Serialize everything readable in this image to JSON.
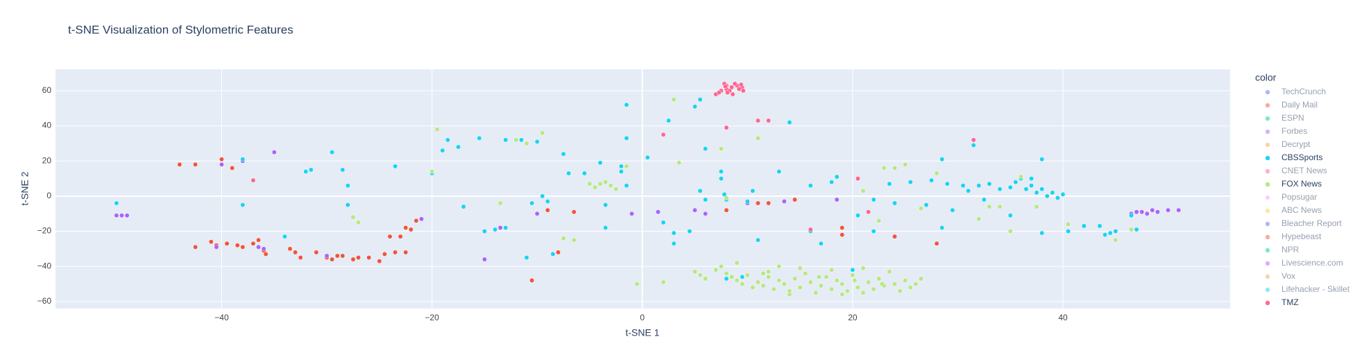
{
  "chart_data": {
    "type": "scatter",
    "title": "t-SNE Visualization of Stylometric Features",
    "x_label": "t-SNE 1",
    "y_label": "t-SNE 2",
    "legend_title": "color",
    "xlim": [
      -55.8,
      55.9
    ],
    "ylim": [
      -64,
      72.2
    ],
    "xticks": [
      {
        "value": -40,
        "label": "−40"
      },
      {
        "value": -20,
        "label": "−20"
      },
      0,
      20,
      40
    ],
    "yticks": [
      {
        "value": -60,
        "label": "−60"
      },
      {
        "value": -40,
        "label": "−40"
      },
      {
        "value": -20,
        "label": "−20"
      },
      0,
      20,
      40,
      60
    ],
    "grid": true,
    "series": [
      {
        "name": "TechCrunch",
        "color": "#636efa",
        "legend_dimmed": true,
        "x": [],
        "y": []
      },
      {
        "name": "Daily Mail",
        "color": "#EF553B",
        "legend_dimmed": true,
        "x": [
          -44,
          -42.5,
          -40,
          -39,
          -42.5,
          -41,
          -40.5,
          -39.5,
          -38.5,
          -38,
          -37,
          -36.5,
          -36,
          -35.8,
          -33.5,
          -33,
          -32.5,
          -31,
          -30,
          -29.5,
          -29,
          -28.5,
          -27.5,
          -27,
          -26,
          -25,
          -24.5,
          -24,
          -23.5,
          -23,
          -22.5,
          -22,
          -21.5,
          -22.5,
          -9,
          -8,
          -10.5,
          -6.5,
          8,
          11,
          12,
          14.5,
          19,
          19,
          24,
          28
        ],
        "y": [
          18,
          18,
          21,
          16,
          -29,
          -26,
          -28,
          -27,
          -28,
          -29,
          -27,
          -25,
          -31,
          -33,
          -30,
          -32,
          -35,
          -32,
          -35,
          -36,
          -34,
          -34,
          -36,
          -35,
          -35,
          -37,
          -33,
          -23,
          -32,
          -23,
          -18,
          -19,
          -14,
          -32,
          -8,
          -32,
          -48,
          -9,
          -8,
          -4,
          -4,
          -2,
          -18,
          -22,
          -23,
          -27
        ]
      },
      {
        "name": "ESPN",
        "color": "#00cc96",
        "legend_dimmed": true,
        "x": [],
        "y": []
      },
      {
        "name": "Forbes",
        "color": "#ab63fa",
        "legend_dimmed": true,
        "x": [
          -50,
          -49.5,
          -49,
          -40.5,
          -40,
          -38,
          -36,
          -36.5,
          -35,
          -30,
          -21,
          -15,
          -13.5,
          -10,
          -1,
          1.5,
          5,
          6,
          10,
          13.5,
          18.5,
          46.5,
          47,
          47.5,
          48,
          48.5,
          49,
          50,
          51
        ],
        "y": [
          -11,
          -11,
          -11,
          -29,
          18,
          20,
          -30,
          -29,
          25,
          -34,
          -13,
          -36,
          -18,
          -10,
          -10,
          -9,
          -8,
          -10,
          -4,
          -3,
          -2,
          -10,
          -9,
          -9,
          -10,
          -8,
          -9,
          -8,
          -8
        ]
      },
      {
        "name": "Decrypt",
        "color": "#FFA15A",
        "legend_dimmed": true,
        "x": [],
        "y": []
      },
      {
        "name": "CBSSports",
        "color": "#19d3f3",
        "legend_dimmed": false,
        "x": [
          -50,
          -38,
          -38,
          -32,
          -31.5,
          -29.5,
          -28.5,
          -28,
          -28,
          -34,
          -23.5,
          -20,
          -19,
          -18.5,
          -17.5,
          -15.5,
          -17,
          -15,
          -14,
          -13,
          -13,
          -11.5,
          -11,
          -10.5,
          -10,
          -9.5,
          -9,
          -8.5,
          -7.5,
          -7,
          -5.5,
          -4,
          -3.5,
          -3.5,
          -2,
          -2,
          -1.5,
          -1.5,
          -1.5,
          0.5,
          2,
          2.5,
          3,
          3,
          4.5,
          5,
          5.5,
          6,
          6,
          5.5,
          7.5,
          7.5,
          7.8,
          8,
          10,
          10.5,
          11,
          13,
          14,
          16,
          16,
          17,
          18.5,
          18,
          20,
          20.5,
          22,
          22,
          23.5,
          24,
          25.5,
          27,
          27.5,
          28.5,
          29,
          28.5,
          29.5,
          30.5,
          31,
          31.5,
          32,
          32.5,
          33,
          34,
          35,
          35,
          35.5,
          36,
          36.5,
          37,
          37,
          37.5,
          38,
          38,
          38.5,
          38,
          39,
          39.5,
          40,
          40.5,
          42,
          43.5,
          44,
          44.5,
          45,
          46.5,
          47,
          8,
          9.5
        ],
        "y": [
          -4,
          -5,
          21,
          14,
          15,
          25,
          15,
          6,
          -5,
          -23,
          17,
          13,
          26,
          32,
          28,
          33,
          -6,
          -20,
          -19,
          -18,
          32,
          32,
          -35,
          -4,
          31,
          0,
          -3,
          -33,
          24,
          13,
          13,
          19,
          -5,
          -18,
          17,
          14,
          52,
          6,
          33,
          22,
          -15,
          43,
          -21,
          -27,
          -20,
          51,
          55,
          -2,
          27,
          3,
          14,
          10,
          1,
          -2,
          -3,
          3,
          -25,
          14,
          42,
          6,
          -20,
          -27,
          11,
          8,
          -42,
          -11,
          -2,
          -20,
          7,
          -4,
          8,
          -5,
          9,
          21,
          7,
          -18,
          -8,
          6,
          3,
          29,
          6,
          -2,
          7,
          4,
          -11,
          5,
          8,
          10,
          4,
          10,
          6,
          2,
          4,
          21,
          0,
          -21,
          2,
          -1,
          1,
          -20,
          -17,
          -17,
          -22,
          -21,
          -20,
          -11,
          -19,
          -47,
          -46
        ]
      },
      {
        "name": "CNET News",
        "color": "#FF6692",
        "legend_dimmed": true,
        "x": [],
        "y": []
      },
      {
        "name": "FOX News",
        "color": "#B6E880",
        "legend_dimmed": false,
        "x": [
          -20,
          -19.5,
          -9.5,
          -11,
          -13.5,
          -12,
          -27.5,
          -27,
          -7.5,
          -5,
          -4.5,
          -4,
          -3.5,
          -3,
          -2.5,
          -1.5,
          -6.5,
          -0.5,
          2,
          3,
          3.5,
          7.5,
          8,
          11,
          13,
          21,
          22.5,
          23,
          24,
          25,
          26.5,
          28,
          32,
          33,
          34,
          35,
          37.5,
          40.5,
          45,
          46.5,
          36,
          5,
          5.5,
          6,
          7,
          7.5,
          8,
          8.5,
          9,
          9.5,
          10,
          10.5,
          11,
          11.5,
          12,
          12.5,
          13,
          13.5,
          14,
          14.5,
          15,
          15.5,
          16,
          16.5,
          17,
          17.5,
          18,
          18.5,
          19,
          19.5,
          20,
          20.5,
          21,
          21.5,
          22,
          22.5,
          23,
          23.5,
          24,
          24.5,
          25,
          25.5,
          26,
          26.5,
          9,
          12,
          15,
          18,
          21,
          14,
          19,
          11.5,
          16.8,
          20.2,
          22.8
        ],
        "y": [
          14,
          38,
          36,
          30,
          -4,
          32,
          -12,
          -15,
          -24,
          7,
          5,
          7,
          8,
          6,
          4,
          17,
          -25,
          -50,
          -49,
          55,
          19,
          27,
          -1,
          33,
          -40,
          3,
          -14,
          16,
          16,
          18,
          -7,
          13,
          -13,
          -6,
          -6,
          -20,
          -6,
          -16,
          -25,
          -19,
          11,
          -43,
          -45,
          -47,
          -42,
          -40,
          -44,
          -46,
          -48,
          -50,
          -45,
          -52,
          -49,
          -51,
          -46,
          -53,
          -48,
          -50,
          -54,
          -47,
          -52,
          -44,
          -49,
          -55,
          -51,
          -46,
          -53,
          -48,
          -50,
          -54,
          -45,
          -52,
          -55,
          -49,
          -53,
          -47,
          -51,
          -43,
          -50,
          -54,
          -48,
          -52,
          -50,
          -47,
          -38,
          -43,
          -41,
          -42,
          -41,
          -56,
          -56,
          -44,
          -46,
          -48,
          -50
        ]
      },
      {
        "name": "Popsugar",
        "color": "#FF97FF",
        "legend_dimmed": true,
        "x": [],
        "y": []
      },
      {
        "name": "ABC News",
        "color": "#FECB52",
        "legend_dimmed": true,
        "x": [],
        "y": []
      },
      {
        "name": "Bleacher Report",
        "color": "#636efa",
        "legend_dimmed": true,
        "x": [],
        "y": []
      },
      {
        "name": "Hypebeast",
        "color": "#EF553B",
        "legend_dimmed": true,
        "x": [],
        "y": []
      },
      {
        "name": "NPR",
        "color": "#00cc96",
        "legend_dimmed": true,
        "x": [],
        "y": []
      },
      {
        "name": "Livescience.com",
        "color": "#ab63fa",
        "legend_dimmed": true,
        "x": [],
        "y": []
      },
      {
        "name": "Vox",
        "color": "#FFA15A",
        "legend_dimmed": true,
        "x": [],
        "y": []
      },
      {
        "name": "Lifehacker - Skillet",
        "color": "#19d3f3",
        "legend_dimmed": true,
        "x": [],
        "y": []
      },
      {
        "name": "TMZ",
        "color": "#FF6692",
        "legend_dimmed": false,
        "x": [
          7,
          7.5,
          8,
          8.5,
          9,
          9.5,
          8,
          7.8,
          8.8,
          9.2,
          7.3,
          8.3,
          9.6,
          8.6,
          7.9,
          9.4,
          8.1,
          2,
          8,
          11,
          12,
          31.5,
          20.5,
          -37,
          21.5,
          16
        ],
        "y": [
          58,
          60,
          61,
          62,
          63,
          62,
          63,
          64,
          64,
          61,
          59,
          60,
          60,
          58,
          62.5,
          63.5,
          59,
          35,
          39,
          43,
          43,
          32,
          10,
          9,
          -9,
          -19
        ]
      }
    ]
  }
}
